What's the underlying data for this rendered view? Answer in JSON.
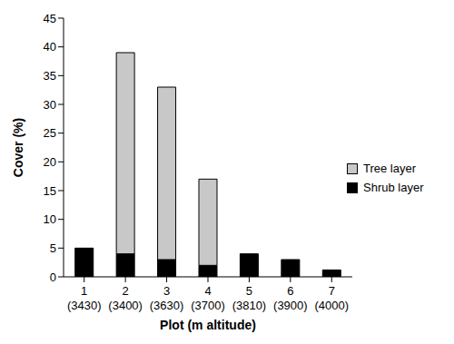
{
  "chart_data": {
    "type": "bar",
    "stacked": true,
    "x_label": "Plot (m altitude)",
    "y_label": "Cover (%)",
    "categories": [
      "1 (3430)",
      "2 (3400)",
      "3 (3630)",
      "4 (3700)",
      "5 (3810)",
      "6 (3900)",
      "7 (4000)"
    ],
    "series": [
      {
        "name": "Shrub layer",
        "color": "#000000",
        "values": [
          5,
          4,
          3,
          2,
          4,
          3,
          1.2
        ]
      },
      {
        "name": "Tree layer",
        "color": "#c8c8c8",
        "values": [
          null,
          35,
          30,
          15,
          null,
          null,
          null
        ]
      }
    ],
    "ylim": [
      0,
      45
    ],
    "yticks": [
      0,
      5,
      10,
      15,
      20,
      25,
      30,
      35,
      40,
      45
    ],
    "legend": "right"
  }
}
